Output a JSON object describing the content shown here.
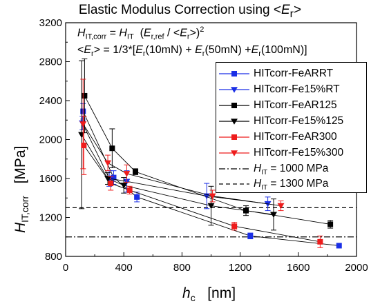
{
  "title_parts": [
    "Elastic Modulus Correction using <",
    "E",
    "r",
    ">"
  ],
  "formula1": {
    "parts": [
      "H",
      "IT,corr",
      " = ",
      "H",
      "IT",
      "  (",
      "E",
      "r,ref",
      " / <",
      "E",
      "r",
      ">)",
      "2"
    ]
  },
  "formula2": {
    "parts": [
      "<",
      "E",
      "r",
      "> = 1/3*[",
      "E",
      "r",
      "(10mN) + ",
      "E",
      "r",
      "(50mN) +",
      "E",
      "r",
      "(100mN)]"
    ]
  },
  "axes": {
    "xlabel_var": "h",
    "xlabel_sub": "c",
    "xlabel_unit": "   [nm]",
    "ylabel_var": "H",
    "ylabel_sub": "IT,corr",
    "ylabel_unit": "   [MPa]"
  },
  "chart_data": {
    "type": "scatter",
    "xlim": [
      0,
      2000
    ],
    "ylim": [
      800,
      3200
    ],
    "xticks": [
      0,
      400,
      800,
      1200,
      1600,
      2000
    ],
    "yticks": [
      800,
      1200,
      1600,
      2000,
      2400,
      2800,
      3200
    ],
    "legend_position": "top-right",
    "series": [
      {
        "name": "HITcorr-FeARRT",
        "color": "#1a2fe6",
        "marker": "square",
        "x": [
          120,
          330,
          490,
          1270,
          1880
        ],
        "y": [
          2290,
          1610,
          1410,
          1010,
          910
        ],
        "err": [
          80,
          70,
          50,
          30,
          0
        ]
      },
      {
        "name": "HITcorr-Fe15%RT",
        "color": "#1a2fe6",
        "marker": "triangle-down",
        "x": [
          115,
          300,
          420,
          970,
          1390
        ],
        "y": [
          2170,
          1600,
          1570,
          1420,
          1340
        ],
        "err": [
          70,
          80,
          110,
          130,
          70
        ]
      },
      {
        "name": "HITcorr-FeAR125",
        "color": "#000000",
        "marker": "square",
        "x": [
          130,
          320,
          480,
          1240,
          1820
        ],
        "y": [
          2450,
          1910,
          1670,
          1270,
          1130
        ],
        "err": [
          380,
          200,
          30,
          50,
          40
        ]
      },
      {
        "name": "HITcorr-Fe15%125",
        "color": "#000000",
        "marker": "triangle-down",
        "x": [
          110,
          290,
          400,
          1000,
          1430
        ],
        "y": [
          2050,
          1600,
          1530,
          1320,
          1230
        ],
        "err": [
          760,
          60,
          80,
          200,
          160
        ]
      },
      {
        "name": "HITcorr-FeAR300",
        "color": "#ee1c1c",
        "marker": "square",
        "x": [
          125,
          310,
          440,
          1160,
          1750
        ],
        "y": [
          1940,
          1550,
          1480,
          1110,
          950
        ],
        "err": [
          300,
          70,
          40,
          40,
          60
        ]
      },
      {
        "name": "HITcorr-Fe15%300",
        "color": "#ee1c1c",
        "marker": "triangle-down",
        "x": [
          120,
          290,
          420,
          1010,
          1480
        ],
        "y": [
          2160,
          1760,
          1650,
          1420,
          1320
        ],
        "err": [
          460,
          80,
          90,
          60,
          50
        ]
      }
    ],
    "reference_lines": [
      {
        "value": 1000,
        "style": "dash-dot",
        "label_var": "H",
        "label_sub": "IT",
        "label_rest": " = 1000 MPa"
      },
      {
        "value": 1300,
        "style": "dashed",
        "label_var": "H",
        "label_sub": "IT",
        "label_rest": " = 1300 MPa"
      }
    ]
  }
}
